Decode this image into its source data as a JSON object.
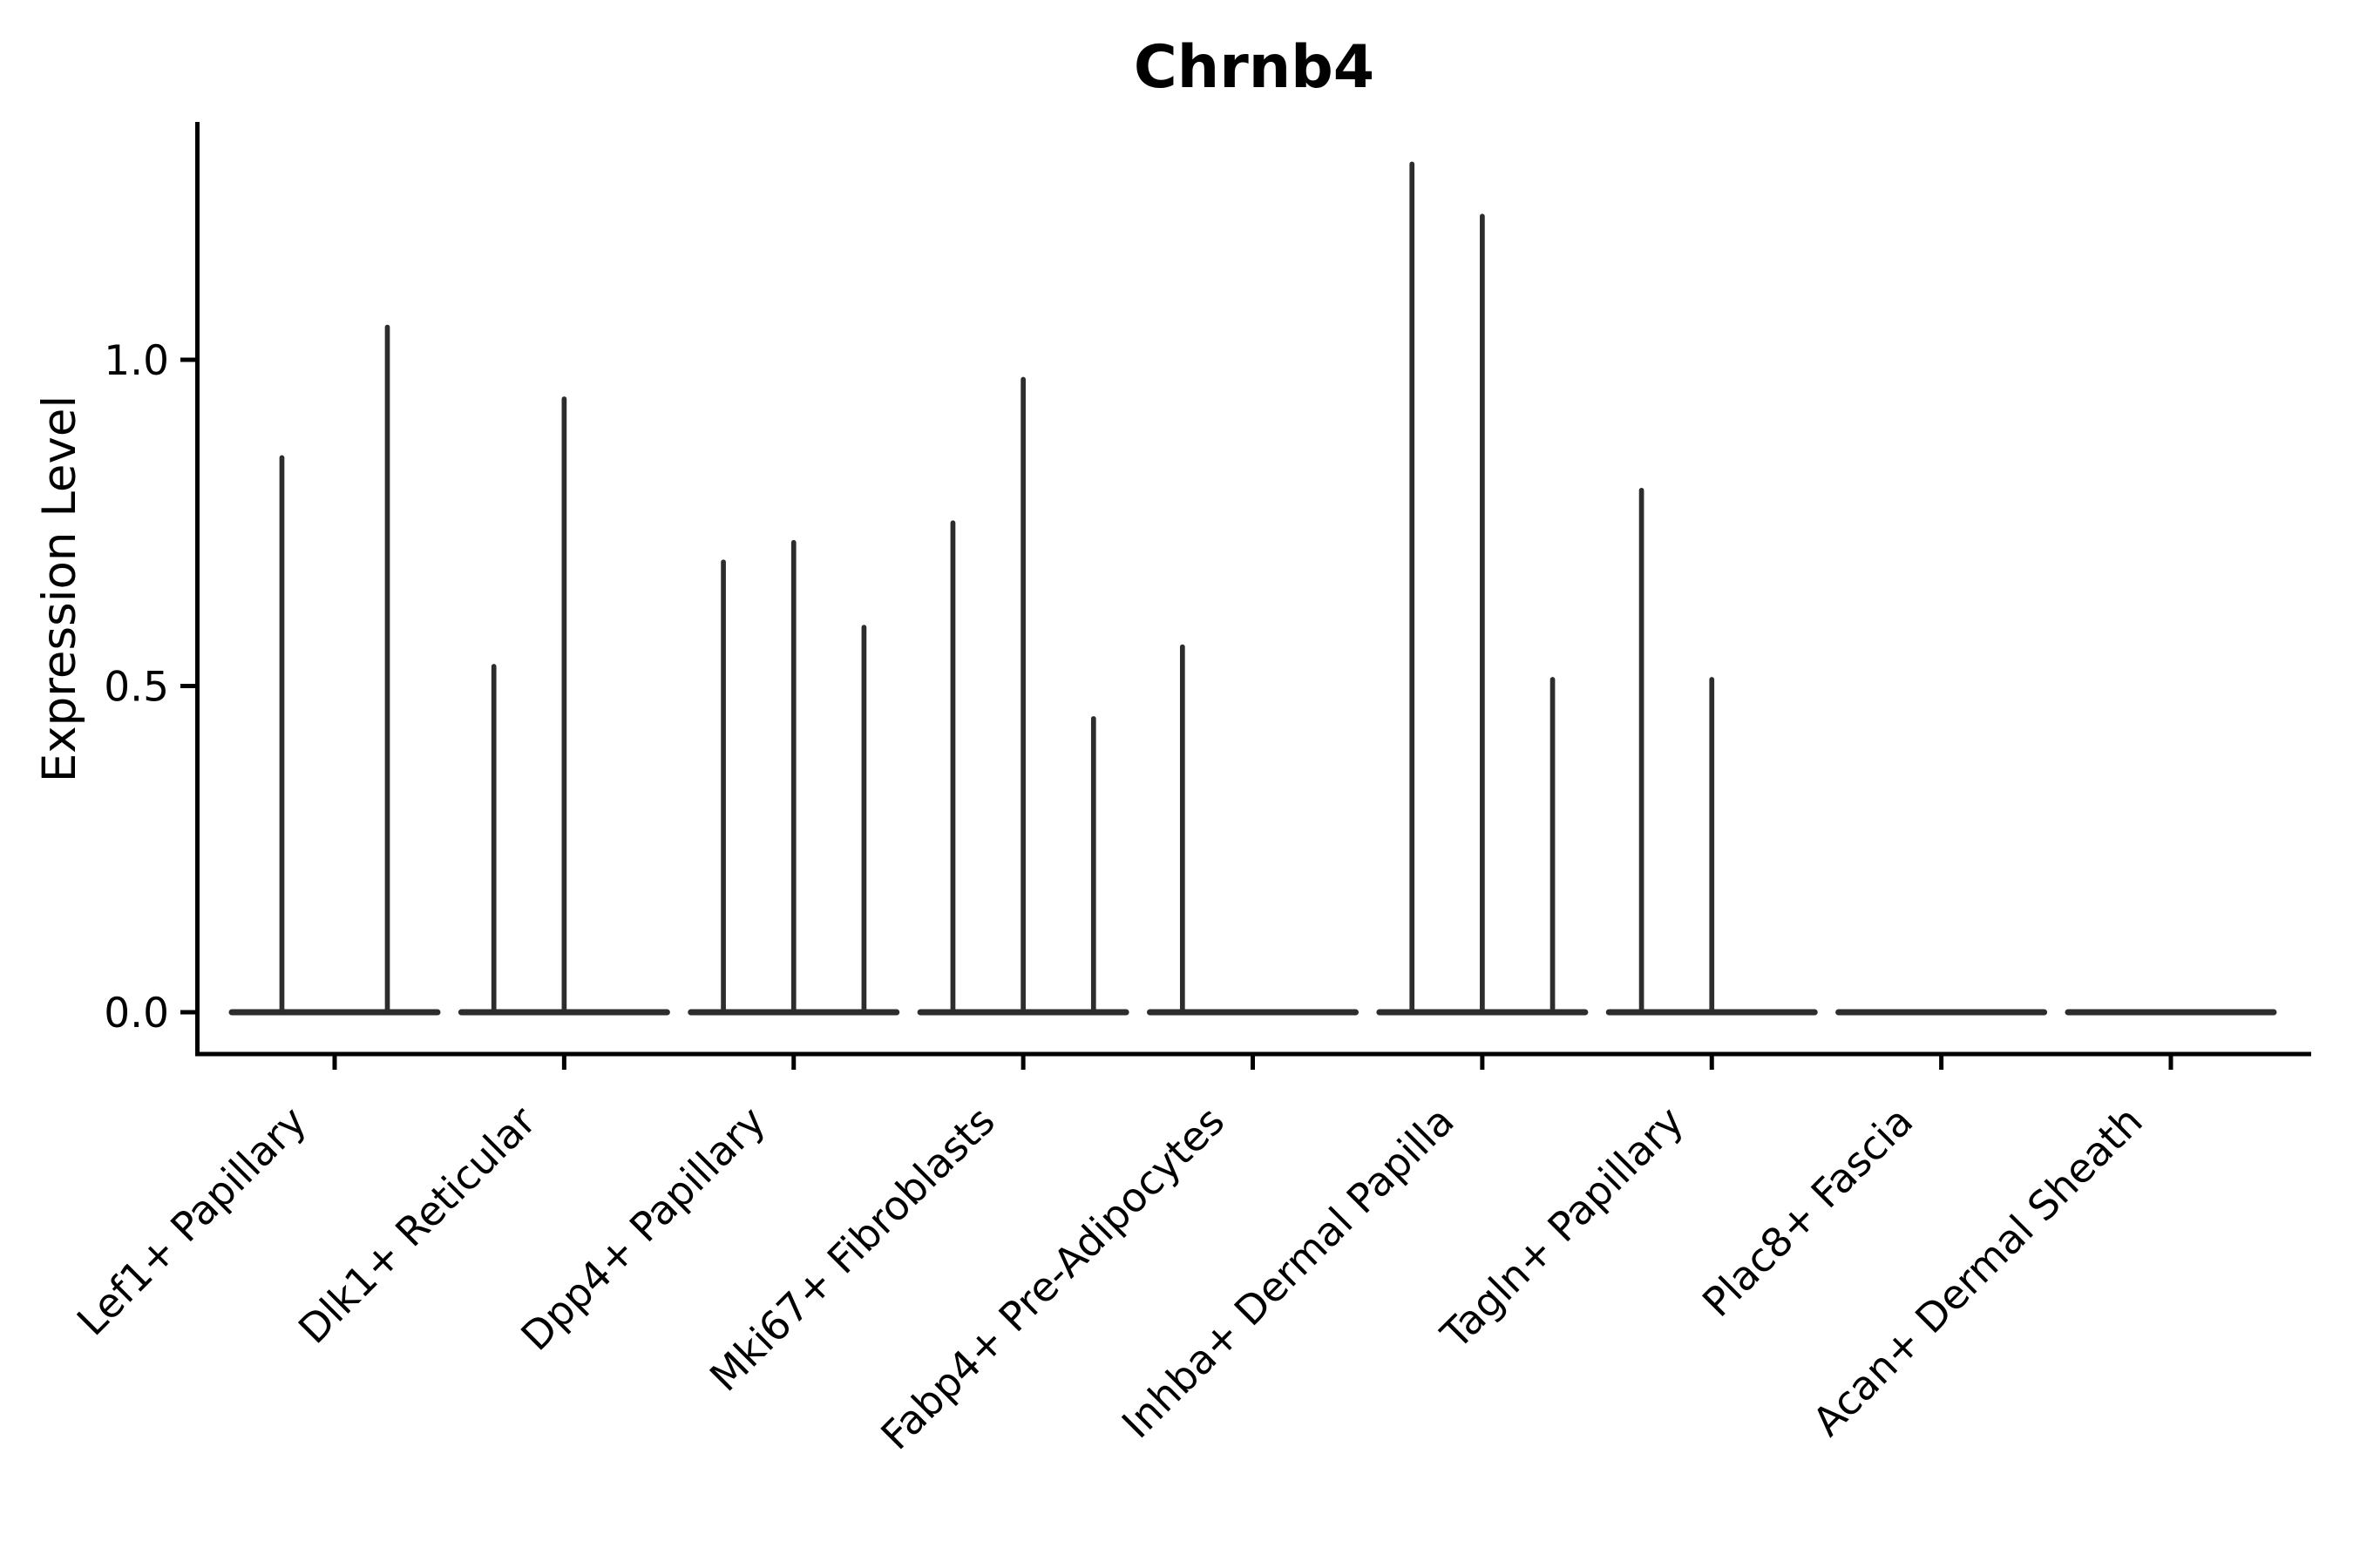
{
  "chart_data": {
    "type": "violin",
    "title": "Chrnb4",
    "ylabel": "Expression Level",
    "xlabel": "",
    "yticks": [
      "0.0",
      "0.5",
      "1.0"
    ],
    "ytick_values": [
      0.0,
      0.5,
      1.0
    ],
    "ylim": [
      -0.064,
      1.36
    ],
    "grid": false,
    "legend": "none",
    "background_color": "#ffffff",
    "axis_color": "#000000",
    "violin_color": "#2d2d2d",
    "x_tick_label_rotation_deg": 45,
    "categories": [
      "Lef1+ Papillary",
      "Dlk1+ Reticular",
      "Dpp4+ Papillary",
      "Mki67+ Fibroblasts",
      "Fabp4+ Pre-Adipocytes",
      "Inhba+ Dermal Papilla",
      "Tagln+ Papillary",
      "Plac8+ Fascia",
      "Acan+ Dermal Sheath"
    ],
    "violins": [
      {
        "category": "Lef1+ Papillary",
        "sub_violin_max": [
          0.85,
          1.05
        ]
      },
      {
        "category": "Dlk1+ Reticular",
        "sub_violin_max": [
          0.53,
          0.94,
          null
        ]
      },
      {
        "category": "Dpp4+ Papillary",
        "sub_violin_max": [
          0.69,
          0.72,
          0.59
        ]
      },
      {
        "category": "Mki67+ Fibroblasts",
        "sub_violin_max": [
          0.75,
          0.97,
          0.45
        ]
      },
      {
        "category": "Fabp4+ Pre-Adipocytes",
        "sub_violin_max": [
          0.56,
          null,
          null
        ]
      },
      {
        "category": "Inhba+ Dermal Papilla",
        "sub_violin_max": [
          1.3,
          1.22,
          0.51
        ]
      },
      {
        "category": "Tagln+ Papillary",
        "sub_violin_max": [
          0.8,
          0.51,
          null
        ]
      },
      {
        "category": "Plac8+ Fascia",
        "sub_violin_max": [
          null,
          null,
          null
        ]
      },
      {
        "category": "Acan+ Dermal Sheath",
        "sub_violin_max": [
          null,
          null,
          null
        ]
      }
    ],
    "note": "Zero-inflated expression violins: each category shows a flat density sliver at 0 with thin spikes rising to the maximum expressed value of each sub-violin; null = no expressing cells (flat only)."
  }
}
